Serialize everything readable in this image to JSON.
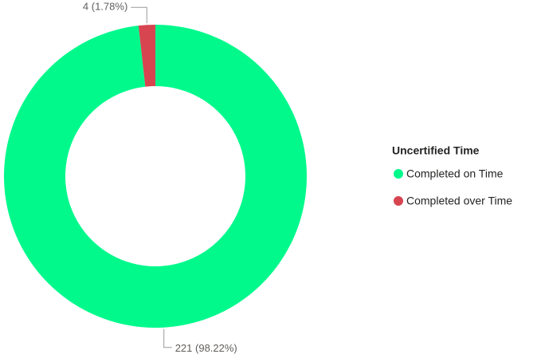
{
  "chart_data": {
    "type": "donut",
    "legend_title": "Uncertified Time",
    "categories": [
      "Completed on Time",
      "Completed over Time"
    ],
    "values": [
      221,
      4
    ],
    "value_labels": [
      "221 (98.22%)",
      "4 (1.78%)"
    ],
    "colors": [
      "#01f98c",
      "#d64550"
    ],
    "legend": "right"
  }
}
